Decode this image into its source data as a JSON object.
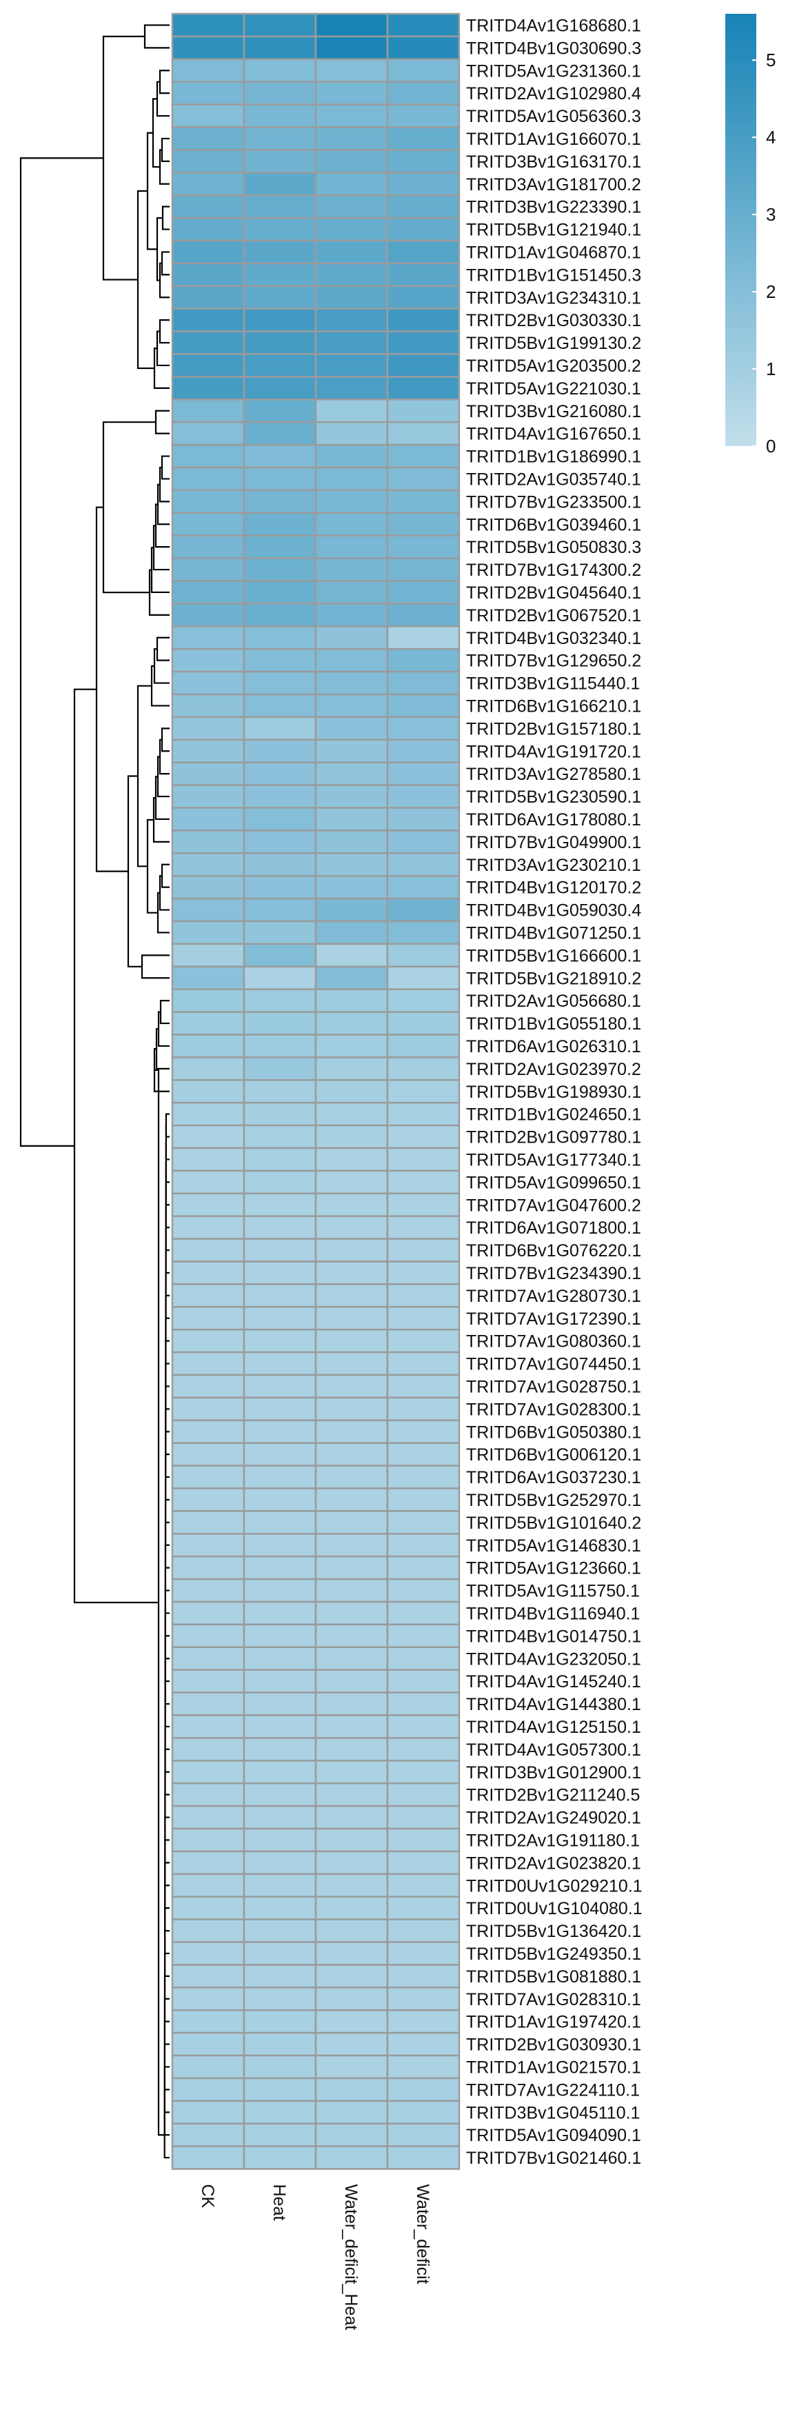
{
  "chart_data": {
    "type": "heatmap",
    "columns": [
      "CK",
      "Heat",
      "Water_deficit_Heat",
      "Water_deficit"
    ],
    "rows": [
      "TRITD4Av1G168680.1",
      "TRITD4Bv1G030690.3",
      "TRITD5Av1G231360.1",
      "TRITD2Av1G102980.4",
      "TRITD5Av1G056360.3",
      "TRITD1Av1G166070.1",
      "TRITD3Bv1G163170.1",
      "TRITD3Av1G181700.2",
      "TRITD3Bv1G223390.1",
      "TRITD5Bv1G121940.1",
      "TRITD1Av1G046870.1",
      "TRITD1Bv1G151450.3",
      "TRITD3Av1G234310.1",
      "TRITD2Bv1G030330.1",
      "TRITD5Bv1G199130.2",
      "TRITD5Av1G203500.2",
      "TRITD5Av1G221030.1",
      "TRITD3Bv1G216080.1",
      "TRITD4Av1G167650.1",
      "TRITD1Bv1G186990.1",
      "TRITD2Av1G035740.1",
      "TRITD7Bv1G233500.1",
      "TRITD6Bv1G039460.1",
      "TRITD5Bv1G050830.3",
      "TRITD7Bv1G174300.2",
      "TRITD2Bv1G045640.1",
      "TRITD2Bv1G067520.1",
      "TRITD4Bv1G032340.1",
      "TRITD7Bv1G129650.2",
      "TRITD3Bv1G115440.1",
      "TRITD6Bv1G166210.1",
      "TRITD2Bv1G157180.1",
      "TRITD4Av1G191720.1",
      "TRITD3Av1G278580.1",
      "TRITD5Bv1G230590.1",
      "TRITD6Av1G178080.1",
      "TRITD7Bv1G049900.1",
      "TRITD3Av1G230210.1",
      "TRITD4Bv1G120170.2",
      "TRITD4Bv1G059030.4",
      "TRITD4Bv1G071250.1",
      "TRITD5Bv1G166600.1",
      "TRITD5Bv1G218910.2",
      "TRITD2Av1G056680.1",
      "TRITD1Bv1G055180.1",
      "TRITD6Av1G026310.1",
      "TRITD2Av1G023970.2",
      "TRITD5Bv1G198930.1",
      "TRITD1Bv1G024650.1",
      "TRITD2Bv1G097780.1",
      "TRITD5Av1G177340.1",
      "TRITD5Av1G099650.1",
      "TRITD7Av1G047600.2",
      "TRITD6Av1G071800.1",
      "TRITD6Bv1G076220.1",
      "TRITD7Bv1G234390.1",
      "TRITD7Av1G280730.1",
      "TRITD7Av1G172390.1",
      "TRITD7Av1G080360.1",
      "TRITD7Av1G074450.1",
      "TRITD7Av1G028750.1",
      "TRITD7Av1G028300.1",
      "TRITD6Bv1G050380.1",
      "TRITD6Bv1G006120.1",
      "TRITD6Av1G037230.1",
      "TRITD5Bv1G252970.1",
      "TRITD5Bv1G101640.2",
      "TRITD5Av1G146830.1",
      "TRITD5Av1G123660.1",
      "TRITD5Av1G115750.1",
      "TRITD4Bv1G116940.1",
      "TRITD4Bv1G014750.1",
      "TRITD4Av1G232050.1",
      "TRITD4Av1G145240.1",
      "TRITD4Av1G144380.1",
      "TRITD4Av1G125150.1",
      "TRITD4Av1G057300.1",
      "TRITD3Bv1G012900.1",
      "TRITD2Bv1G211240.5",
      "TRITD2Av1G249020.1",
      "TRITD2Av1G191180.1",
      "TRITD2Av1G023820.1",
      "TRITD0Uv1G029210.1",
      "TRITD0Uv1G104080.1",
      "TRITD5Bv1G136420.1",
      "TRITD5Bv1G249350.1",
      "TRITD5Bv1G081880.1",
      "TRITD7Av1G028310.1",
      "TRITD1Av1G197420.1",
      "TRITD2Bv1G030930.1",
      "TRITD1Av1G021570.1",
      "TRITD7Av1G224110.1",
      "TRITD3Bv1G045110.1",
      "TRITD5Av1G094090.1",
      "TRITD7Bv1G021460.1"
    ],
    "values": [
      [
        4.9,
        4.7,
        5.6,
        5.0
      ],
      [
        4.8,
        4.8,
        5.5,
        5.1
      ],
      [
        2.2,
        2.1,
        2.0,
        2.3
      ],
      [
        2.4,
        2.5,
        2.4,
        2.6
      ],
      [
        2.0,
        2.4,
        2.3,
        2.4
      ],
      [
        2.8,
        2.6,
        2.7,
        3.0
      ],
      [
        2.8,
        2.7,
        2.8,
        2.9
      ],
      [
        2.7,
        3.3,
        2.6,
        2.8
      ],
      [
        3.0,
        3.0,
        2.8,
        3.0
      ],
      [
        3.1,
        3.0,
        3.0,
        3.1
      ],
      [
        3.5,
        3.4,
        3.3,
        3.6
      ],
      [
        3.4,
        3.2,
        3.2,
        3.4
      ],
      [
        3.4,
        3.2,
        3.3,
        3.5
      ],
      [
        4.2,
        4.2,
        4.0,
        4.3
      ],
      [
        4.1,
        4.1,
        4.0,
        4.2
      ],
      [
        4.1,
        4.0,
        4.0,
        4.3
      ],
      [
        4.1,
        4.0,
        3.9,
        4.2
      ],
      [
        2.3,
        3.0,
        1.3,
        1.6
      ],
      [
        2.0,
        2.9,
        1.5,
        1.4
      ],
      [
        2.3,
        2.2,
        2.4,
        2.3
      ],
      [
        2.3,
        2.3,
        2.3,
        2.2
      ],
      [
        2.4,
        2.5,
        2.4,
        2.4
      ],
      [
        2.4,
        2.8,
        2.4,
        2.5
      ],
      [
        2.5,
        2.8,
        2.4,
        2.4
      ],
      [
        2.5,
        2.8,
        2.5,
        2.5
      ],
      [
        2.7,
        2.9,
        2.5,
        2.6
      ],
      [
        2.8,
        2.9,
        2.6,
        2.8
      ],
      [
        1.9,
        2.0,
        1.7,
        0.8
      ],
      [
        1.8,
        2.1,
        2.1,
        2.4
      ],
      [
        1.8,
        2.0,
        2.1,
        2.2
      ],
      [
        1.7,
        2.0,
        2.0,
        2.2
      ],
      [
        1.5,
        1.2,
        1.8,
        1.9
      ],
      [
        1.6,
        1.8,
        1.6,
        1.8
      ],
      [
        1.7,
        1.8,
        1.6,
        1.8
      ],
      [
        1.7,
        1.8,
        1.7,
        1.8
      ],
      [
        1.8,
        2.0,
        1.6,
        1.7
      ],
      [
        1.7,
        1.8,
        1.7,
        1.8
      ],
      [
        1.6,
        1.7,
        1.6,
        1.6
      ],
      [
        1.7,
        1.8,
        1.8,
        1.9
      ],
      [
        1.9,
        2.0,
        2.4,
        2.7
      ],
      [
        1.6,
        1.6,
        2.2,
        2.1
      ],
      [
        1.0,
        2.1,
        0.8,
        1.2
      ],
      [
        1.8,
        0.8,
        2.1,
        0.8
      ],
      [
        1.3,
        1.2,
        1.2,
        1.1
      ],
      [
        1.2,
        1.3,
        1.2,
        1.2
      ],
      [
        1.2,
        1.2,
        1.1,
        1.2
      ],
      [
        1.0,
        1.4,
        1.0,
        1.0
      ],
      [
        1.0,
        1.0,
        1.0,
        0.9
      ],
      [
        0.9,
        1.0,
        0.9,
        0.9
      ],
      [
        0.8,
        0.9,
        0.9,
        0.8
      ],
      [
        0.8,
        0.9,
        0.8,
        0.8
      ],
      [
        0.8,
        0.9,
        0.8,
        0.8
      ],
      [
        0.8,
        0.8,
        0.8,
        0.8
      ],
      [
        0.8,
        0.8,
        0.8,
        0.8
      ],
      [
        0.8,
        0.8,
        0.8,
        0.8
      ],
      [
        0.8,
        0.8,
        0.8,
        0.8
      ],
      [
        0.8,
        0.8,
        0.8,
        0.8
      ],
      [
        0.8,
        0.8,
        0.8,
        0.8
      ],
      [
        0.8,
        0.8,
        0.8,
        0.8
      ],
      [
        0.8,
        0.8,
        0.8,
        0.8
      ],
      [
        0.8,
        0.8,
        0.8,
        0.8
      ],
      [
        0.8,
        0.8,
        0.8,
        0.8
      ],
      [
        0.8,
        0.8,
        0.8,
        0.8
      ],
      [
        0.8,
        0.8,
        0.8,
        0.8
      ],
      [
        0.8,
        0.8,
        0.8,
        0.8
      ],
      [
        0.8,
        0.8,
        0.8,
        0.8
      ],
      [
        0.8,
        0.8,
        0.8,
        0.8
      ],
      [
        0.8,
        0.8,
        0.8,
        0.8
      ],
      [
        0.8,
        0.8,
        0.8,
        0.8
      ],
      [
        0.8,
        0.8,
        0.8,
        0.8
      ],
      [
        0.8,
        0.8,
        0.8,
        0.8
      ],
      [
        0.8,
        0.8,
        0.8,
        0.8
      ],
      [
        0.8,
        0.8,
        0.8,
        0.8
      ],
      [
        0.8,
        0.8,
        0.8,
        0.8
      ],
      [
        0.8,
        0.8,
        0.8,
        0.8
      ],
      [
        0.8,
        0.8,
        0.8,
        0.8
      ],
      [
        0.8,
        0.8,
        0.8,
        0.8
      ],
      [
        0.8,
        0.8,
        0.8,
        0.8
      ],
      [
        0.8,
        0.8,
        0.8,
        0.8
      ],
      [
        0.8,
        0.8,
        0.8,
        0.8
      ],
      [
        0.8,
        0.8,
        0.8,
        0.8
      ],
      [
        0.8,
        0.8,
        0.8,
        0.8
      ],
      [
        0.8,
        0.8,
        0.8,
        0.8
      ],
      [
        0.8,
        0.8,
        0.8,
        0.8
      ],
      [
        0.8,
        0.8,
        0.8,
        0.8
      ],
      [
        0.8,
        0.8,
        0.8,
        0.8
      ],
      [
        0.8,
        0.8,
        0.8,
        0.8
      ],
      [
        0.8,
        0.8,
        0.8,
        0.8
      ],
      [
        0.9,
        0.9,
        0.8,
        0.8
      ],
      [
        0.9,
        0.9,
        0.8,
        0.8
      ],
      [
        0.9,
        0.9,
        0.8,
        0.8
      ],
      [
        0.9,
        0.9,
        0.9,
        0.9
      ],
      [
        0.9,
        0.9,
        0.9,
        0.9
      ],
      [
        0.9,
        0.9,
        0.9,
        0.9
      ],
      [
        0.9,
        0.9,
        0.9,
        0.9
      ]
    ],
    "color_scale": {
      "min": 0,
      "max": 5.6,
      "low_color": "#c2dfeb",
      "high_color": "#1783b5"
    },
    "legend": {
      "ticks": [
        0,
        1,
        2,
        3,
        4,
        5
      ],
      "position": "top-right"
    },
    "cell_border_color": "#9b9b9b",
    "dendrogram": "rows",
    "title": "",
    "xlabel": "",
    "ylabel": ""
  }
}
